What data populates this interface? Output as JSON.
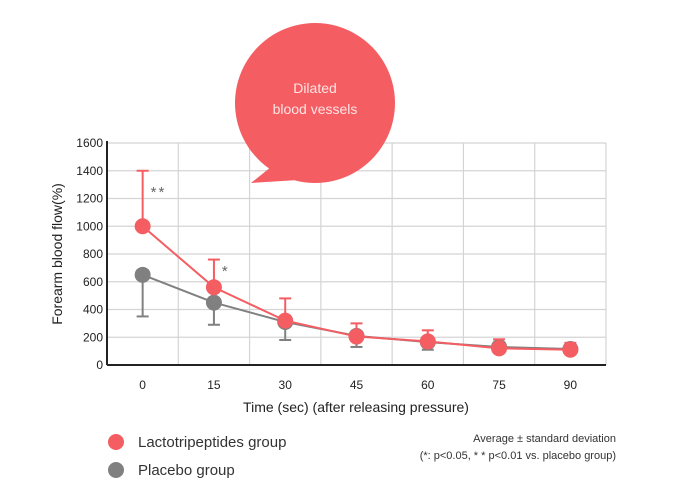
{
  "chart_data": {
    "type": "line",
    "title": "",
    "xlabel": "Time (sec) (after releasing pressure)",
    "ylabel": "Forearm blood flow(%)",
    "x": [
      0,
      15,
      30,
      45,
      60,
      75,
      90
    ],
    "x_tick_labels": [
      "0",
      "15",
      "30",
      "45",
      "60",
      "75",
      "90"
    ],
    "y_tick_labels": [
      "0",
      "200",
      "400",
      "600",
      "800",
      "1000",
      "1200",
      "1400",
      "1600"
    ],
    "ylim": [
      0,
      1600
    ],
    "grid": true,
    "series": [
      {
        "name": "Lactotripeptides group",
        "color": "#f45d62",
        "values": [
          1000,
          560,
          320,
          205,
          170,
          120,
          110
        ],
        "error_upper": [
          1400,
          760,
          480,
          300,
          250,
          185,
          160
        ],
        "error_direction": "up"
      },
      {
        "name": "Placebo group",
        "color": "#808080",
        "values": [
          650,
          450,
          310,
          210,
          165,
          130,
          115
        ],
        "error_lower": [
          350,
          290,
          180,
          130,
          110,
          100,
          95
        ],
        "error_direction": "down"
      }
    ],
    "annotations": [
      {
        "x": 0,
        "text": "**"
      },
      {
        "x": 15,
        "text": "*"
      }
    ],
    "callout": {
      "line1": "Dilated",
      "line2": "blood vessels",
      "color": "#f45d62"
    },
    "legend_position": "bottom-left"
  },
  "note": {
    "line1": "Average ± standard deviation",
    "line2": "(*: p<0.05, * * p<0.01 vs. placebo group)"
  }
}
